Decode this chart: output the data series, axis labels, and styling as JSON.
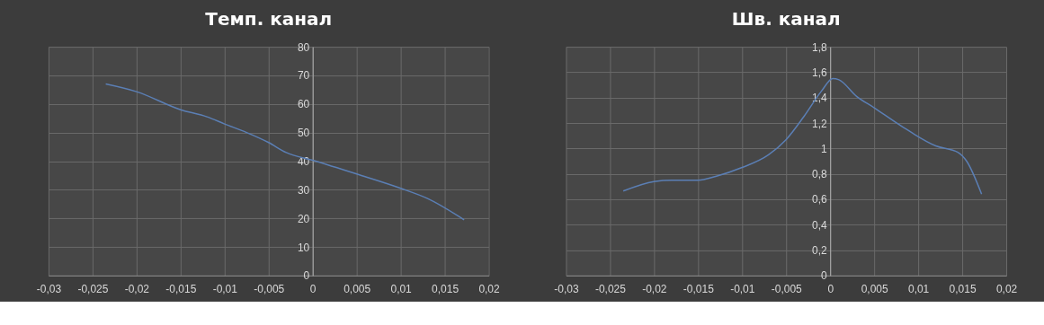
{
  "chart_data": [
    {
      "type": "line",
      "title": "Темп. канал",
      "grid": true,
      "marker": "none",
      "line_style": "solid",
      "xlim": [
        -0.03,
        0.02
      ],
      "xticks": [
        {
          "value": -0.03,
          "label": "-0,03"
        },
        {
          "value": -0.025,
          "label": "-0,025"
        },
        {
          "value": -0.02,
          "label": "-0,02"
        },
        {
          "value": -0.015,
          "label": "-0,015"
        },
        {
          "value": -0.01,
          "label": "-0,01"
        },
        {
          "value": -0.005,
          "label": "-0,005"
        },
        0,
        {
          "value": 0.005,
          "label": "0,005"
        },
        {
          "value": 0.01,
          "label": "0,01"
        },
        {
          "value": 0.015,
          "label": "0,015"
        },
        {
          "value": 0.02,
          "label": "0,02"
        }
      ],
      "ylim": [
        0,
        80
      ],
      "yticks": [
        0,
        10,
        20,
        30,
        40,
        50,
        60,
        70,
        80
      ],
      "series": [
        {
          "color": "#5b7fb5",
          "x": [
            -0.0235,
            -0.02,
            -0.015,
            -0.012,
            -0.01,
            -0.0075,
            -0.005,
            -0.003,
            0,
            0.005,
            0.01,
            0.013,
            0.0172
          ],
          "values": [
            67,
            64.3,
            58,
            55.5,
            53,
            50,
            46.5,
            43,
            40.3,
            35.5,
            30.5,
            27,
            19.5
          ]
        }
      ]
    },
    {
      "type": "line",
      "title": "Шв. канал",
      "grid": true,
      "marker": "none",
      "line_style": "solid",
      "xlim": [
        -0.03,
        0.02
      ],
      "xticks": [
        {
          "value": -0.03,
          "label": "-0,03"
        },
        {
          "value": -0.025,
          "label": "-0,025"
        },
        {
          "value": -0.02,
          "label": "-0,02"
        },
        {
          "value": -0.015,
          "label": "-0,015"
        },
        {
          "value": -0.01,
          "label": "-0,01"
        },
        {
          "value": -0.005,
          "label": "-0,005"
        },
        0,
        {
          "value": 0.005,
          "label": "0,005"
        },
        {
          "value": 0.01,
          "label": "0,01"
        },
        {
          "value": 0.015,
          "label": "0,015"
        },
        {
          "value": 0.02,
          "label": "0,02"
        }
      ],
      "ylim": [
        0,
        1.8
      ],
      "yticks": [
        0,
        {
          "value": 0.2,
          "label": "0,2"
        },
        {
          "value": 0.4,
          "label": "0,4"
        },
        {
          "value": 0.6,
          "label": "0,6"
        },
        {
          "value": 0.8,
          "label": "0,8"
        },
        1,
        {
          "value": 1.2,
          "label": "1,2"
        },
        {
          "value": 1.4,
          "label": "1,4"
        },
        {
          "value": 1.6,
          "label": "1,6"
        },
        {
          "value": 1.8,
          "label": "1,8"
        }
      ],
      "series": [
        {
          "color": "#5b7fb5",
          "x": [
            -0.0235,
            -0.02,
            -0.018,
            -0.015,
            -0.013,
            -0.01,
            -0.007,
            -0.005,
            -0.003,
            -0.001,
            0.0003,
            0.001,
            0.003,
            0.005,
            0.008,
            0.012,
            0.0145,
            0.0155,
            0.0172
          ],
          "values": [
            0.665,
            0.74,
            0.75,
            0.75,
            0.78,
            0.85,
            0.95,
            1.07,
            1.25,
            1.45,
            1.55,
            1.54,
            1.41,
            1.32,
            1.18,
            1.02,
            0.97,
            0.9,
            0.64
          ]
        }
      ]
    }
  ]
}
